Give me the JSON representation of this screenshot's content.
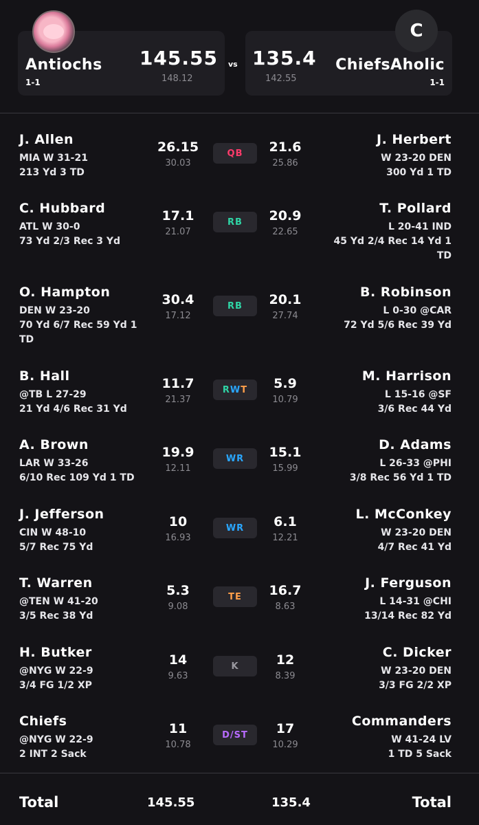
{
  "matchup": {
    "vs_label": "vs",
    "left": {
      "name": "Antiochs",
      "record": "1-1",
      "score": "145.55",
      "projected": "148.12",
      "avatar": "kirby-avatar"
    },
    "right": {
      "name": "ChiefsAholic",
      "record": "1-1",
      "score": "135.4",
      "projected": "142.55",
      "avatar_letter": "C"
    }
  },
  "rows": [
    {
      "pos": "QB",
      "pos_color": "#ff3b6b",
      "left": {
        "name": "J. Allen",
        "line1": "MIA W 31-21",
        "line2": "213 Yd 3 TD",
        "score": "26.15",
        "proj": "30.03"
      },
      "right": {
        "name": "J. Herbert",
        "line1": "W 23-20 DEN",
        "line2": "300 Yd 1 TD",
        "score": "21.6",
        "proj": "25.86"
      }
    },
    {
      "pos": "RB",
      "pos_color": "#2fd4a5",
      "left": {
        "name": "C. Hubbard",
        "line1": "ATL W 30-0",
        "line2": "73 Yd 2/3 Rec 3 Yd",
        "score": "17.1",
        "proj": "21.07"
      },
      "right": {
        "name": "T. Pollard",
        "line1": "L 20-41 IND",
        "line2": "45 Yd 2/4 Rec 14 Yd 1 TD",
        "score": "20.9",
        "proj": "22.65"
      }
    },
    {
      "pos": "RB",
      "pos_color": "#2fd4a5",
      "left": {
        "name": "O. Hampton",
        "line1": "DEN W 23-20",
        "line2": "70 Yd 6/7 Rec 59 Yd 1 TD",
        "score": "30.4",
        "proj": "17.12"
      },
      "right": {
        "name": "B. Robinson",
        "line1": "L 0-30 @CAR",
        "line2": "72 Yd 5/6 Rec 39 Yd",
        "score": "20.1",
        "proj": "27.74"
      }
    },
    {
      "pos": "RWT",
      "pos_color": "multi",
      "left": {
        "name": "B. Hall",
        "line1": "@TB L 27-29",
        "line2": "21 Yd 4/6 Rec 31 Yd",
        "score": "11.7",
        "proj": "21.37"
      },
      "right": {
        "name": "M. Harrison",
        "line1": "L 15-16 @SF",
        "line2": "3/6 Rec 44 Yd",
        "score": "5.9",
        "proj": "10.79"
      }
    },
    {
      "pos": "WR",
      "pos_color": "#2aa7ff",
      "left": {
        "name": "A. Brown",
        "line1": "LAR W 33-26",
        "line2": "6/10 Rec 109 Yd 1 TD",
        "score": "19.9",
        "proj": "12.11"
      },
      "right": {
        "name": "D. Adams",
        "line1": "L 26-33 @PHI",
        "line2": "3/8 Rec 56 Yd 1 TD",
        "score": "15.1",
        "proj": "15.99"
      }
    },
    {
      "pos": "WR",
      "pos_color": "#2aa7ff",
      "left": {
        "name": "J. Jefferson",
        "line1": "CIN W 48-10",
        "line2": "5/7 Rec 75 Yd",
        "score": "10",
        "proj": "16.93"
      },
      "right": {
        "name": "L. McConkey",
        "line1": "W 23-20 DEN",
        "line2": "4/7 Rec 41 Yd",
        "score": "6.1",
        "proj": "12.21"
      }
    },
    {
      "pos": "TE",
      "pos_color": "#ff9f4a",
      "left": {
        "name": "T. Warren",
        "line1": "@TEN W 41-20",
        "line2": "3/5 Rec 38 Yd",
        "score": "5.3",
        "proj": "9.08"
      },
      "right": {
        "name": "J. Ferguson",
        "line1": "L 14-31 @CHI",
        "line2": "13/14 Rec 82 Yd",
        "score": "16.7",
        "proj": "8.63"
      }
    },
    {
      "pos": "K",
      "pos_color": "#9a99a0",
      "left": {
        "name": "H. Butker",
        "line1": "@NYG W 22-9",
        "line2": "3/4 FG 1/2 XP",
        "score": "14",
        "proj": "9.63"
      },
      "right": {
        "name": "C. Dicker",
        "line1": "W 23-20 DEN",
        "line2": "3/3 FG 2/2 XP",
        "score": "12",
        "proj": "8.39"
      }
    },
    {
      "pos": "D/ST",
      "pos_color": "#b86bff",
      "left": {
        "name": "Chiefs",
        "line1": "@NYG W 22-9",
        "line2": "2 INT 2 Sack",
        "score": "11",
        "proj": "10.78"
      },
      "right": {
        "name": "Commanders",
        "line1": "W 41-24 LV",
        "line2": "1 TD 5 Sack",
        "score": "17",
        "proj": "10.29"
      }
    }
  ],
  "footer": {
    "label_left": "Total",
    "label_right": "Total",
    "left_total": "145.55",
    "right_total": "135.4"
  }
}
